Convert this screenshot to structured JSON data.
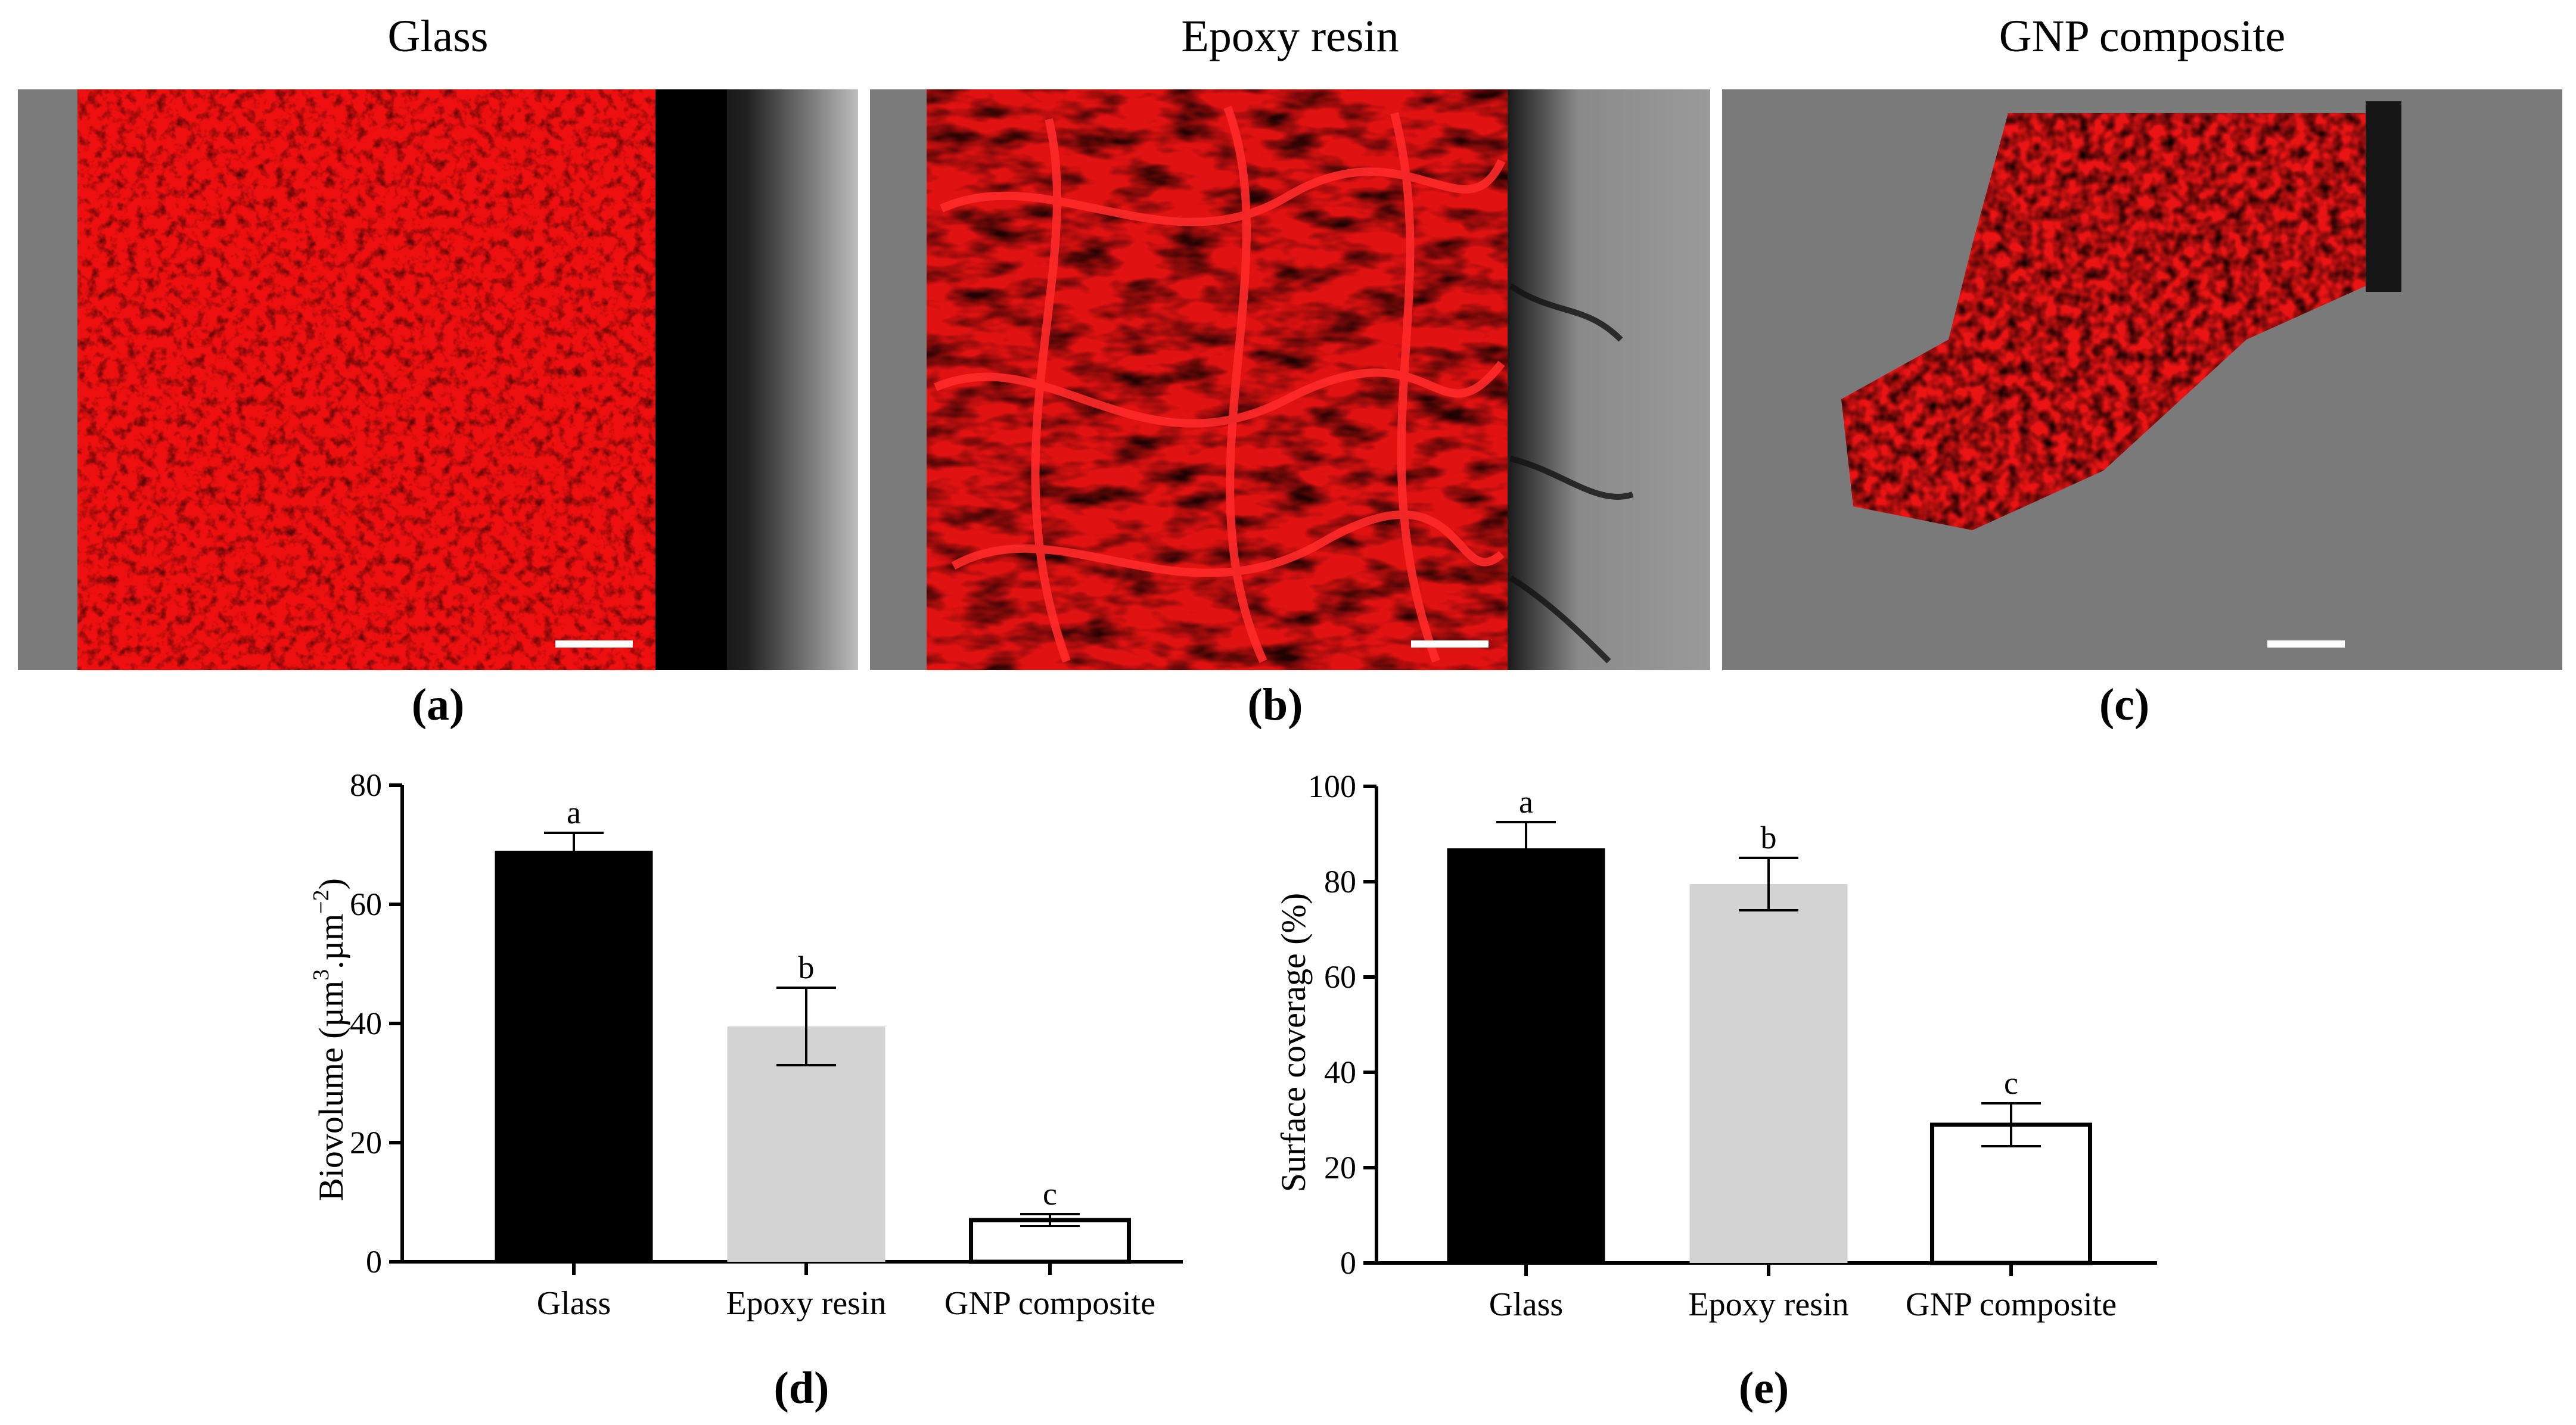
{
  "panels": [
    {
      "id": "a",
      "title": "Glass",
      "letter": "(a)"
    },
    {
      "id": "b",
      "title": "Epoxy resin",
      "letter": "(b)"
    },
    {
      "id": "c",
      "title": "GNP composite",
      "letter": "(c)"
    }
  ],
  "chart_data": [
    {
      "type": "bar",
      "panel_letter": "(d)",
      "categories": [
        "Glass",
        "Epoxy resin",
        "GNP composite"
      ],
      "values": [
        69,
        39.5,
        7
      ],
      "errors": [
        3,
        6.5,
        1
      ],
      "significance_labels": [
        "a",
        "b",
        "c"
      ],
      "bar_colors": [
        "#000000",
        "#d3d3d3",
        "#ffffff"
      ],
      "ylabel_main": "Biovolume (µm",
      "ylabel_sup1": "3",
      "ylabel_mid": ".µm",
      "ylabel_sup2": "−2",
      "ylabel_end": ")",
      "ylim": [
        0,
        80
      ],
      "yticks": [
        0,
        20,
        40,
        60,
        80
      ]
    },
    {
      "type": "bar",
      "panel_letter": "(e)",
      "categories": [
        "Glass",
        "Epoxy resin",
        "GNP composite"
      ],
      "values": [
        87,
        79.5,
        29
      ],
      "errors": [
        5.5,
        5.5,
        4.5
      ],
      "significance_labels": [
        "a",
        "b",
        "c"
      ],
      "bar_colors": [
        "#000000",
        "#d3d3d3",
        "#ffffff"
      ],
      "ylabel": "Surface coverage (%)",
      "ylim": [
        0,
        100
      ],
      "yticks": [
        0,
        20,
        40,
        60,
        80,
        100
      ]
    }
  ]
}
